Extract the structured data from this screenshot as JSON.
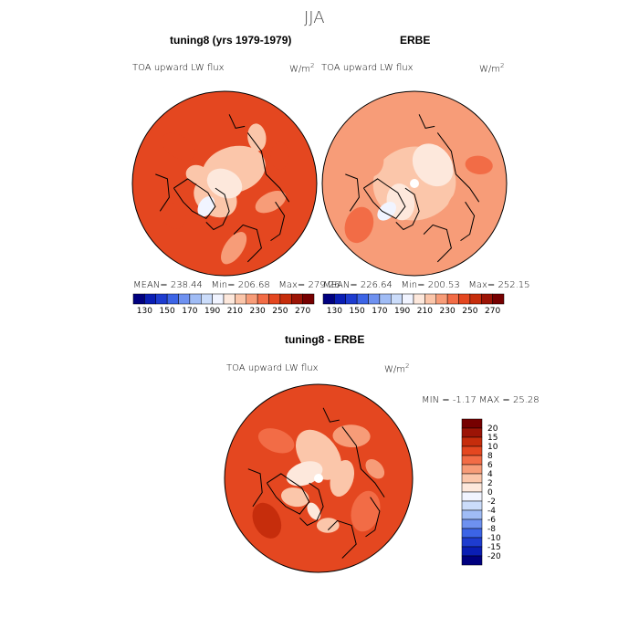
{
  "page": {
    "season": "JJA"
  },
  "colors": {
    "scale": [
      "#00007f",
      "#0a1eb4",
      "#1e3ccf",
      "#3c64e6",
      "#6e91f0",
      "#a0bcf5",
      "#cbdcfa",
      "#f1f4ff",
      "#fde8dc",
      "#fbc6aa",
      "#f79c78",
      "#f26c46",
      "#e44720",
      "#c62d0c",
      "#9c1406",
      "#760000"
    ],
    "coast": "#000000"
  },
  "chart_data": [
    {
      "type": "heatmap",
      "id": "model",
      "title": "tuning8 (yrs 1979-1979)",
      "variable": "TOA upward LW flux",
      "units_base": "W/m",
      "units_exp": "2",
      "stats": {
        "mean_label": "MEAN=",
        "mean": "238.44",
        "min_label": "Min=",
        "min": "206.68",
        "max_label": "Max=",
        "max": "279.26"
      },
      "colorbar_ticks": [
        "130",
        "150",
        "170",
        "190",
        "210",
        "230",
        "250",
        "270"
      ]
    },
    {
      "type": "heatmap",
      "id": "obs",
      "title": "ERBE",
      "variable": "TOA upward LW flux",
      "units_base": "W/m",
      "units_exp": "2",
      "stats": {
        "mean_label": "MEAN=",
        "mean": "226.64",
        "min_label": "Min=",
        "min": "200.53",
        "max_label": "Max=",
        "max": "252.15"
      },
      "colorbar_ticks": [
        "130",
        "150",
        "170",
        "190",
        "210",
        "230",
        "250",
        "270"
      ]
    },
    {
      "type": "heatmap",
      "id": "diff",
      "title": "tuning8 - ERBE",
      "variable": "TOA upward LW flux",
      "units_base": "W/m",
      "units_exp": "2",
      "stats": {
        "min_label": "MIN =",
        "min": "-1.17",
        "max_label": "MAX =",
        "max": "25.28"
      },
      "colorbar_ticks": [
        "20",
        "15",
        "10",
        "8",
        "6",
        "4",
        "2",
        "0",
        "-2",
        "-4",
        "-6",
        "-8",
        "-10",
        "-15",
        "-20"
      ]
    }
  ]
}
